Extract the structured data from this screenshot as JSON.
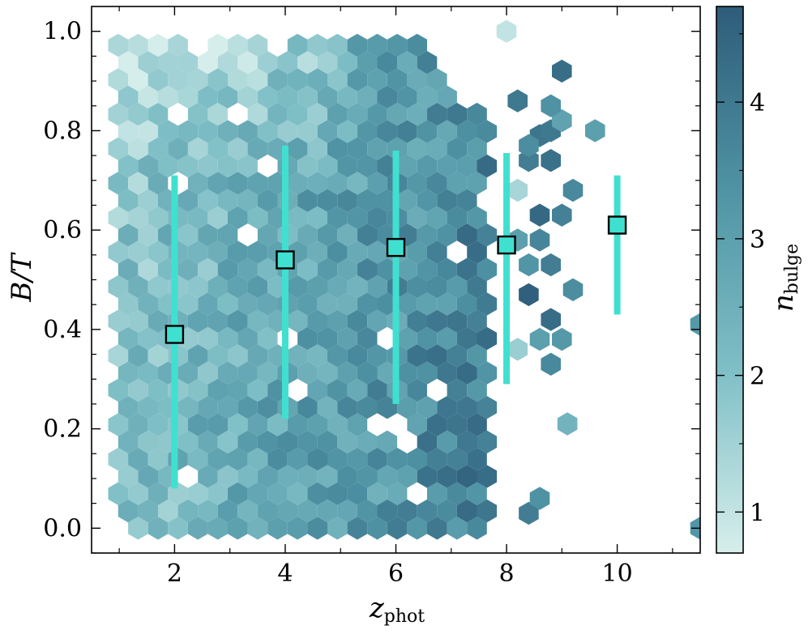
{
  "chart_data": {
    "type": "heatmap",
    "subtype": "hexbin-with-errorbar-markers",
    "xlabel": "z",
    "xlabel_sub": "phot",
    "ylabel": "B/T",
    "colorbar_label": "n",
    "colorbar_label_sub": "bulge",
    "xlim": [
      0.5,
      11.5
    ],
    "ylim": [
      -0.05,
      1.05
    ],
    "x_ticks": [
      2,
      4,
      6,
      8,
      10
    ],
    "x_tick_labels": [
      "2",
      "4",
      "6",
      "8",
      "10"
    ],
    "y_ticks": [
      0.0,
      0.2,
      0.4,
      0.6,
      0.8,
      1.0
    ],
    "y_tick_labels": [
      "0.0",
      "0.2",
      "0.4",
      "0.6",
      "0.8",
      "1.0"
    ],
    "colorbar_range": [
      0.7,
      4.7
    ],
    "colorbar_ticks": [
      1,
      2,
      3,
      4
    ],
    "colorbar_tick_labels": [
      "1",
      "2",
      "3",
      "4"
    ],
    "colormap": [
      "#d6eeeb",
      "#7fbfc6",
      "#4f93a4",
      "#2e5c7a"
    ],
    "marker_color": "#40e0d0",
    "grid": false,
    "binned_points": [
      {
        "x": 2,
        "y": 0.39,
        "ylow": 0.08,
        "yhigh": 0.71
      },
      {
        "x": 4,
        "y": 0.54,
        "ylow": 0.22,
        "yhigh": 0.77
      },
      {
        "x": 6,
        "y": 0.565,
        "ylow": 0.25,
        "yhigh": 0.76
      },
      {
        "x": 8,
        "y": 0.57,
        "ylow": 0.29,
        "yhigh": 0.755
      },
      {
        "x": 10,
        "y": 0.61,
        "ylow": 0.43,
        "yhigh": 0.71
      }
    ],
    "hex_density": {
      "x_max_dense": 7.8,
      "sparse_hexes": [
        {
          "x": 8.4,
          "y": 0.03,
          "n": 3.9
        },
        {
          "x": 8.6,
          "y": 0.06,
          "n": 3.4
        },
        {
          "x": 9.1,
          "y": 0.21,
          "n": 2.4
        },
        {
          "x": 8.2,
          "y": 0.36,
          "n": 1.6
        },
        {
          "x": 8.6,
          "y": 0.38,
          "n": 3.0
        },
        {
          "x": 8.8,
          "y": 0.33,
          "n": 3.6
        },
        {
          "x": 9.0,
          "y": 0.38,
          "n": 3.2
        },
        {
          "x": 8.8,
          "y": 0.42,
          "n": 4.3
        },
        {
          "x": 9.2,
          "y": 0.48,
          "n": 3.5
        },
        {
          "x": 8.4,
          "y": 0.47,
          "n": 4.6
        },
        {
          "x": 8.8,
          "y": 0.53,
          "n": 3.9
        },
        {
          "x": 8.4,
          "y": 0.53,
          "n": 3.3
        },
        {
          "x": 8.6,
          "y": 0.58,
          "n": 3.7
        },
        {
          "x": 8.2,
          "y": 0.58,
          "n": 3.0
        },
        {
          "x": 8.6,
          "y": 0.63,
          "n": 4.4
        },
        {
          "x": 9.0,
          "y": 0.63,
          "n": 3.8
        },
        {
          "x": 8.2,
          "y": 0.68,
          "n": 1.4
        },
        {
          "x": 9.2,
          "y": 0.68,
          "n": 3.6
        },
        {
          "x": 8.4,
          "y": 0.74,
          "n": 3.9
        },
        {
          "x": 8.8,
          "y": 0.74,
          "n": 4.2
        },
        {
          "x": 8.6,
          "y": 0.79,
          "n": 4.1
        },
        {
          "x": 8.4,
          "y": 0.77,
          "n": 3.5
        },
        {
          "x": 8.8,
          "y": 0.8,
          "n": 4.0
        },
        {
          "x": 9.0,
          "y": 0.82,
          "n": 2.9
        },
        {
          "x": 9.6,
          "y": 0.8,
          "n": 3.0
        },
        {
          "x": 8.2,
          "y": 0.86,
          "n": 4.0
        },
        {
          "x": 8.8,
          "y": 0.85,
          "n": 3.4
        },
        {
          "x": 9.0,
          "y": 0.92,
          "n": 4.3
        },
        {
          "x": 8.0,
          "y": 1.0,
          "n": 1.0
        },
        {
          "x": 11.5,
          "y": 0.41,
          "n": 3.2
        },
        {
          "x": 11.5,
          "y": 0.0,
          "n": 3.3
        }
      ]
    }
  }
}
